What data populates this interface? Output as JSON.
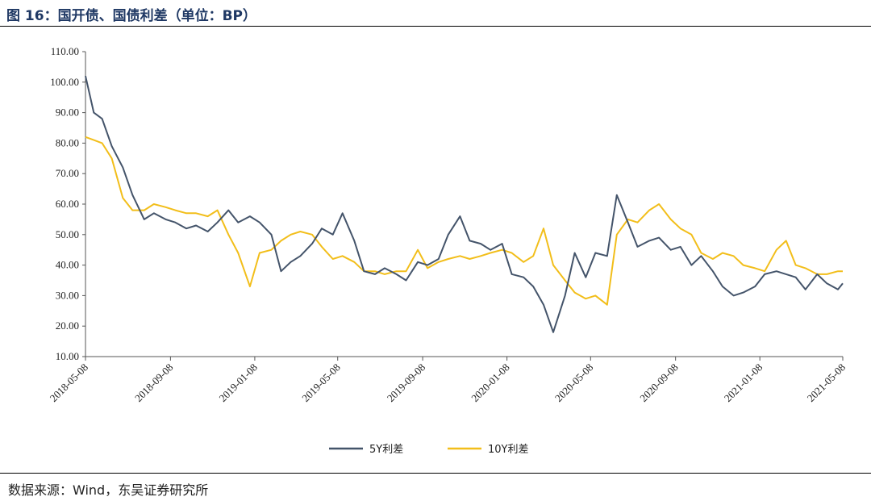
{
  "figure": {
    "title": "图 16：国开债、国债利差（单位：BP）",
    "source": "数据来源：Wind，东吴证券研究所"
  },
  "colors": {
    "title": "#1f3864",
    "series_5y": "#44546a",
    "series_10y": "#f2be1a",
    "axis": "#555555"
  },
  "chart_data": {
    "type": "line",
    "xlabel": "",
    "ylabel": "",
    "ylim": [
      10,
      110
    ],
    "yticks": [
      "110.00",
      "100.00",
      "90.00",
      "80.00",
      "70.00",
      "60.00",
      "50.00",
      "40.00",
      "30.00",
      "20.00",
      "10.00"
    ],
    "xticks": [
      "2018-05-08",
      "2018-09-08",
      "2019-01-08",
      "2019-05-08",
      "2019-09-08",
      "2020-01-08",
      "2020-05-08",
      "2020-09-08",
      "2021-01-08",
      "2021-05-08"
    ],
    "grid": false,
    "legend_position": "bottom",
    "series": [
      {
        "name": "5Y利差",
        "x": [
          "2018-05-08",
          "2018-05-20",
          "2018-06-01",
          "2018-06-15",
          "2018-07-01",
          "2018-07-15",
          "2018-08-01",
          "2018-08-15",
          "2018-09-01",
          "2018-09-15",
          "2018-10-01",
          "2018-10-15",
          "2018-11-01",
          "2018-11-15",
          "2018-12-01",
          "2018-12-15",
          "2019-01-01",
          "2019-01-15",
          "2019-02-01",
          "2019-02-15",
          "2019-03-01",
          "2019-03-15",
          "2019-04-01",
          "2019-04-15",
          "2019-05-01",
          "2019-05-15",
          "2019-06-01",
          "2019-06-15",
          "2019-07-01",
          "2019-07-15",
          "2019-08-01",
          "2019-08-15",
          "2019-09-01",
          "2019-09-15",
          "2019-10-01",
          "2019-10-15",
          "2019-11-01",
          "2019-11-15",
          "2019-12-01",
          "2019-12-15",
          "2020-01-01",
          "2020-01-15",
          "2020-02-01",
          "2020-02-15",
          "2020-03-01",
          "2020-03-15",
          "2020-04-01",
          "2020-04-15",
          "2020-05-01",
          "2020-05-15",
          "2020-06-01",
          "2020-06-15",
          "2020-07-01",
          "2020-07-15",
          "2020-08-01",
          "2020-08-15",
          "2020-09-01",
          "2020-09-15",
          "2020-10-01",
          "2020-10-15",
          "2020-11-01",
          "2020-11-15",
          "2020-12-01",
          "2020-12-15",
          "2021-01-01",
          "2021-01-15",
          "2021-02-01",
          "2021-02-15",
          "2021-03-01",
          "2021-03-15",
          "2021-04-01",
          "2021-04-15",
          "2021-05-01",
          "2021-05-08"
        ],
        "values": [
          102,
          90,
          88,
          79,
          72,
          63,
          55,
          57,
          55,
          54,
          52,
          53,
          51,
          54,
          58,
          54,
          56,
          54,
          50,
          38,
          41,
          43,
          47,
          52,
          50,
          57,
          48,
          38,
          37,
          39,
          37,
          35,
          41,
          40,
          42,
          50,
          56,
          48,
          47,
          45,
          47,
          37,
          36,
          33,
          27,
          18,
          30,
          44,
          36,
          44,
          43,
          63,
          54,
          46,
          48,
          49,
          45,
          46,
          40,
          43,
          38,
          33,
          30,
          31,
          33,
          37,
          38,
          37,
          36,
          32,
          37,
          34,
          32,
          34
        ]
      },
      {
        "name": "10Y利差",
        "x": [
          "2018-05-08",
          "2018-05-20",
          "2018-06-01",
          "2018-06-15",
          "2018-07-01",
          "2018-07-15",
          "2018-08-01",
          "2018-08-15",
          "2018-09-01",
          "2018-09-15",
          "2018-10-01",
          "2018-10-15",
          "2018-11-01",
          "2018-11-15",
          "2018-12-01",
          "2018-12-15",
          "2019-01-01",
          "2019-01-15",
          "2019-02-01",
          "2019-02-15",
          "2019-03-01",
          "2019-03-15",
          "2019-04-01",
          "2019-04-15",
          "2019-05-01",
          "2019-05-15",
          "2019-06-01",
          "2019-06-15",
          "2019-07-01",
          "2019-07-15",
          "2019-08-01",
          "2019-08-15",
          "2019-09-01",
          "2019-09-15",
          "2019-10-01",
          "2019-10-15",
          "2019-11-01",
          "2019-11-15",
          "2019-12-01",
          "2019-12-15",
          "2020-01-01",
          "2020-01-15",
          "2020-02-01",
          "2020-02-15",
          "2020-03-01",
          "2020-03-15",
          "2020-04-01",
          "2020-04-15",
          "2020-05-01",
          "2020-05-15",
          "2020-06-01",
          "2020-06-15",
          "2020-07-01",
          "2020-07-15",
          "2020-08-01",
          "2020-08-15",
          "2020-09-01",
          "2020-09-15",
          "2020-10-01",
          "2020-10-15",
          "2020-11-01",
          "2020-11-15",
          "2020-12-01",
          "2020-12-15",
          "2021-01-01",
          "2021-01-15",
          "2021-02-01",
          "2021-02-15",
          "2021-03-01",
          "2021-03-15",
          "2021-04-01",
          "2021-04-15",
          "2021-05-01",
          "2021-05-08"
        ],
        "values": [
          82,
          81,
          80,
          75,
          62,
          58,
          58,
          60,
          59,
          58,
          57,
          57,
          56,
          58,
          50,
          44,
          33,
          44,
          45,
          48,
          50,
          51,
          50,
          46,
          42,
          43,
          41,
          38,
          38,
          37,
          38,
          38,
          45,
          39,
          41,
          42,
          43,
          42,
          43,
          44,
          45,
          44,
          41,
          43,
          52,
          40,
          35,
          31,
          29,
          30,
          27,
          50,
          55,
          54,
          58,
          60,
          55,
          52,
          50,
          44,
          42,
          44,
          43,
          40,
          39,
          38,
          45,
          48,
          40,
          39,
          37,
          37,
          38,
          38
        ]
      }
    ]
  }
}
